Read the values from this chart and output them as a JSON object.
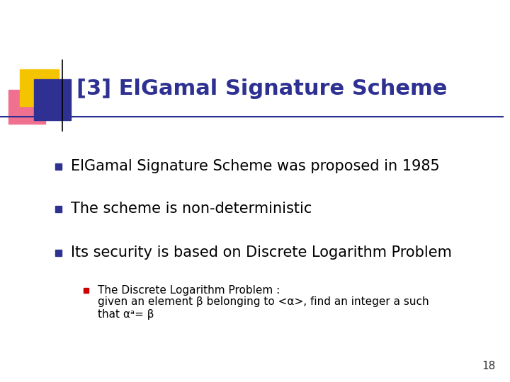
{
  "title": "[3] ElGamal Signature Scheme",
  "title_color": "#2E3192",
  "title_fontsize": 22,
  "background_color": "#FFFFFF",
  "bullet_color": "#2E3192",
  "sub_bullet_color": "#CC0000",
  "bullet_fontsize": 15,
  "sub_bullet_fontsize": 11,
  "text_color": "#000000",
  "bullets": [
    "ElGamal Signature Scheme was proposed in 1985",
    "The scheme is non-deterministic",
    "Its security is based on Discrete Logarithm Problem"
  ],
  "sub_bullet_line1": "The Discrete Logarithm Problem :",
  "sub_bullet_line2": "given an element β belonging to <α>, find an integer a such",
  "sub_bullet_line3": "that αᵃ= β",
  "page_number": "18",
  "line_color": "#2E3192"
}
